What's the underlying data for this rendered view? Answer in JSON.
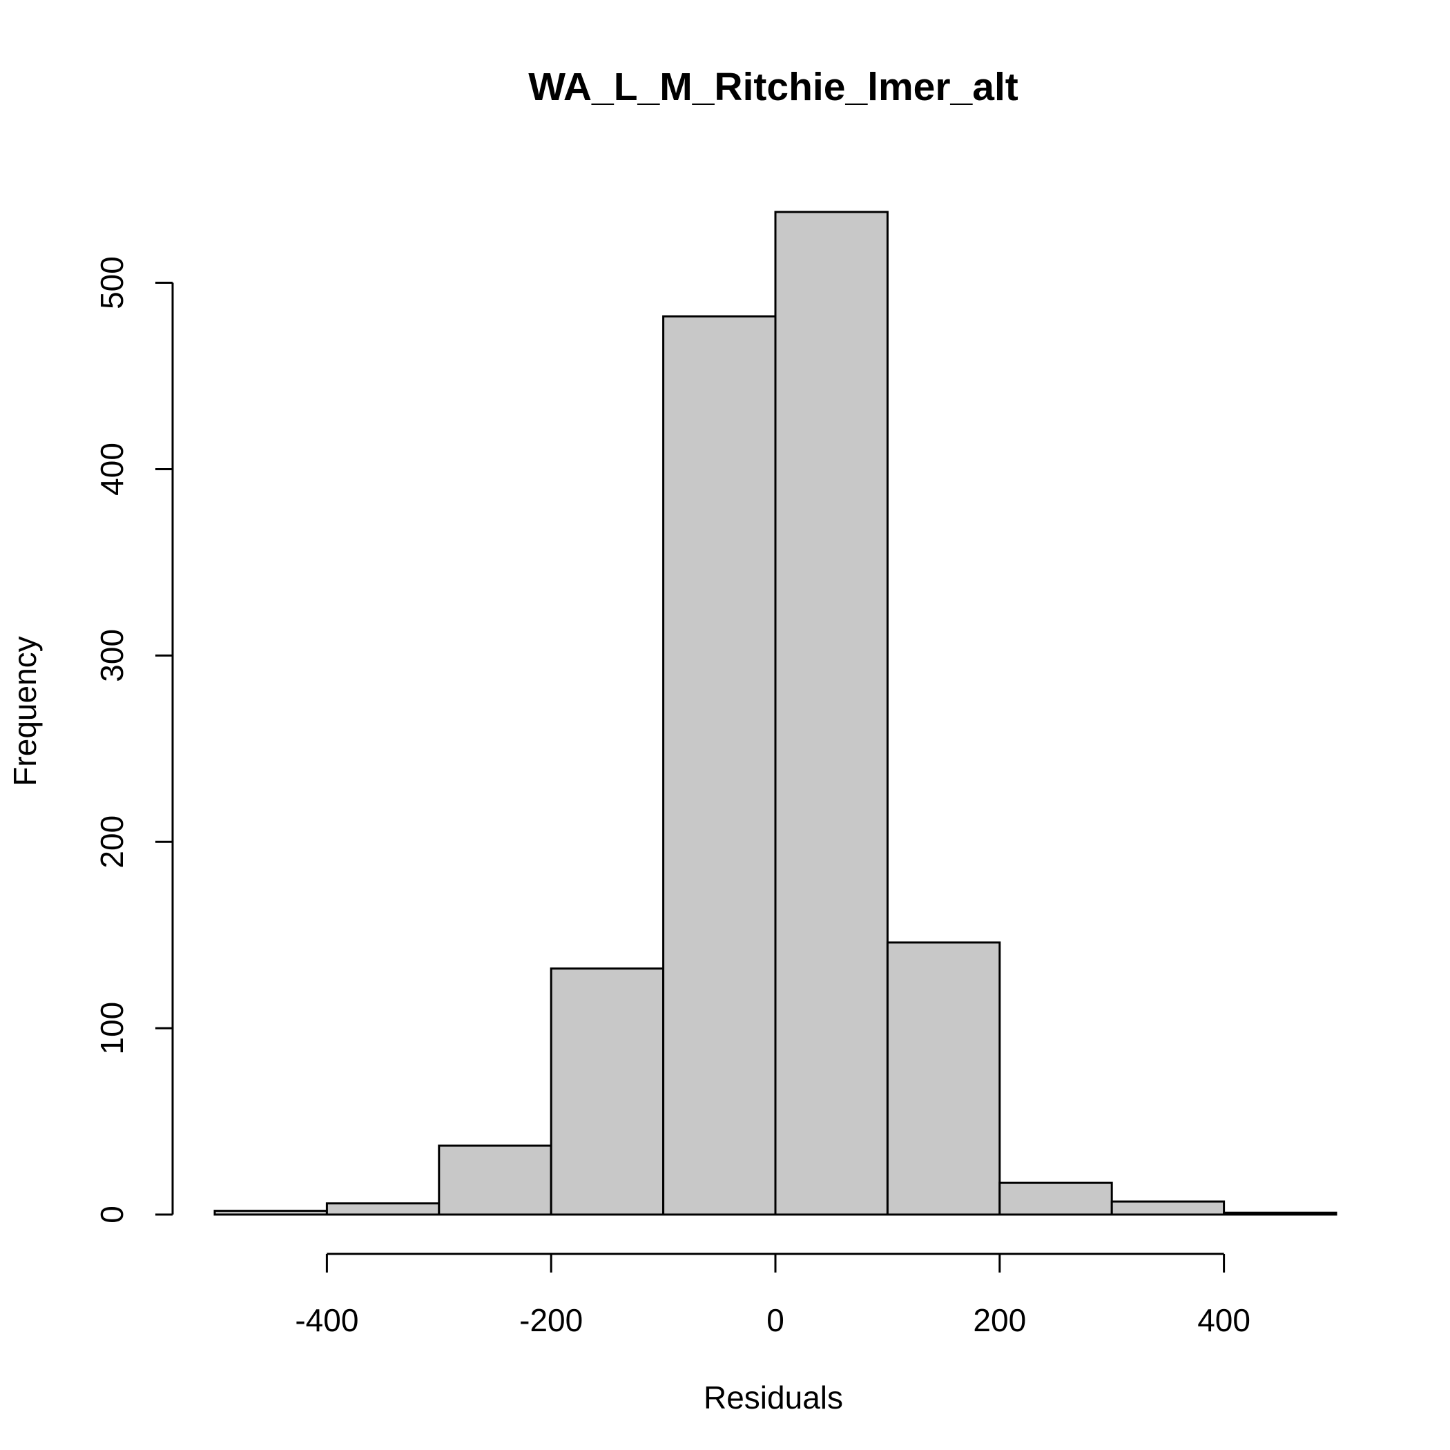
{
  "chart_data": {
    "type": "bar",
    "title": "WA_L_M_Ritchie_lmer_alt",
    "xlabel": "Residuals",
    "ylabel": "Frequency",
    "bins": [
      {
        "x0": -500,
        "x1": -400,
        "count": 2
      },
      {
        "x0": -400,
        "x1": -300,
        "count": 6
      },
      {
        "x0": -300,
        "x1": -200,
        "count": 37
      },
      {
        "x0": -200,
        "x1": -100,
        "count": 132
      },
      {
        "x0": -100,
        "x1": 0,
        "count": 482
      },
      {
        "x0": 0,
        "x1": 100,
        "count": 538
      },
      {
        "x0": 100,
        "x1": 200,
        "count": 146
      },
      {
        "x0": 200,
        "x1": 300,
        "count": 17
      },
      {
        "x0": 300,
        "x1": 400,
        "count": 7
      },
      {
        "x0": 400,
        "x1": 500,
        "count": 1
      }
    ],
    "xlim": [
      -500,
      500
    ],
    "ylim": [
      0,
      538
    ],
    "xticks": [
      "-400",
      "-200",
      "0",
      "200",
      "400"
    ],
    "yticks": [
      "0",
      "100",
      "200",
      "300",
      "400",
      "500"
    ],
    "bar_color": "#c8c8c8",
    "grid": false
  }
}
